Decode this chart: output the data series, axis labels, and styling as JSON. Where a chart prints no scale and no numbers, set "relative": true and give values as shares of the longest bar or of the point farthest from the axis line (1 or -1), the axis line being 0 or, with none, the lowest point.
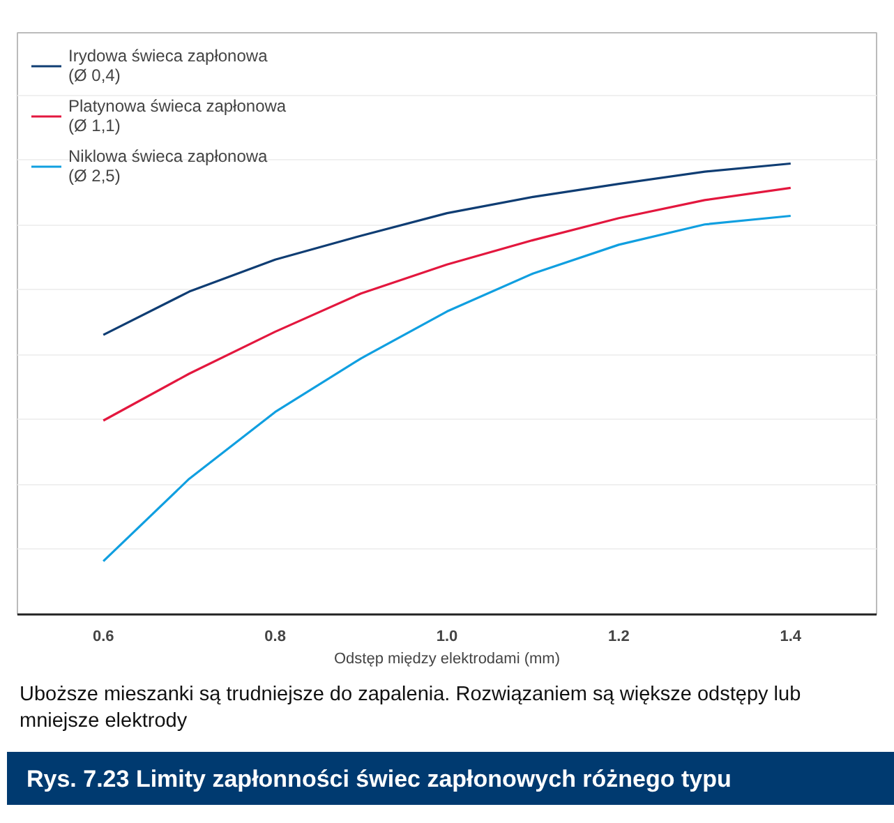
{
  "chart_data": {
    "type": "line",
    "title": "Rys. 7.23 Limity zapłonności świec zapłonowych różnego typu",
    "xlabel": "Odstęp między elektrodami (mm)",
    "annotations": [
      "Uboższe mieszanki są trudniejsze do zapalenia. Rozwiązaniem są większe odstępy lub mniejsze elektrody"
    ],
    "x": [
      0.6,
      0.7,
      0.8,
      0.9,
      1.0,
      1.1,
      1.2,
      1.3,
      1.4
    ],
    "xlim": [
      0.5,
      1.5
    ],
    "xticks": [
      {
        "value": 0.6,
        "label": "0.6"
      },
      {
        "value": 0.8,
        "label": "0.8"
      },
      {
        "value": 1.0,
        "label": "1.0"
      },
      {
        "value": 1.2,
        "label": "1.2"
      },
      {
        "value": 1.4,
        "label": "1.4"
      }
    ],
    "relative": true,
    "grid": "y",
    "legend": "top left",
    "tick_labels": "x",
    "marker": "none",
    "line_style": "solid",
    "series": [
      {
        "name": "Irydowa świeca zapłonowa\n(Ø 0,4)",
        "color": "#0f3d73",
        "values": [
          0.62,
          0.716,
          0.787,
          0.84,
          0.89,
          0.926,
          0.955,
          0.982,
          1.0
        ]
      },
      {
        "name": "Platynowa świeca zapłonowa\n(Ø 1,1)",
        "color": "#e3173e",
        "values": [
          0.43,
          0.534,
          0.627,
          0.712,
          0.776,
          0.83,
          0.879,
          0.919,
          0.946
        ]
      },
      {
        "name": "Niklowa świeca zapłonowa\n(Ø 2,5)",
        "color": "#109fe0",
        "values": [
          0.118,
          0.301,
          0.449,
          0.568,
          0.672,
          0.756,
          0.82,
          0.865,
          0.884
        ]
      }
    ]
  }
}
